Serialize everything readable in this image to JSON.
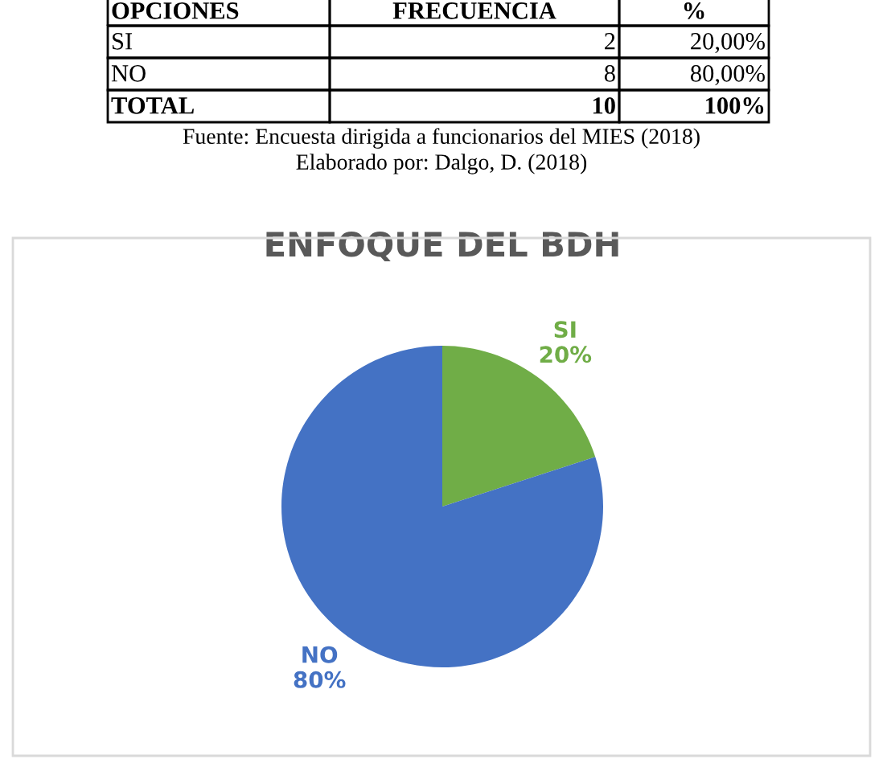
{
  "chart_data": {
    "type": "pie",
    "title": "ENFOQUE DEL BDH",
    "categories": [
      "SI",
      "NO"
    ],
    "values": [
      20,
      80
    ],
    "colors": [
      "#70ad47",
      "#4472c4"
    ],
    "value_labels": [
      "20%",
      "80%"
    ],
    "annotations": [
      "OPCIONES",
      "FRECUENCIA",
      "%",
      "SI",
      "2",
      "20,00%",
      "NO",
      "8",
      "80,00%",
      "TOTAL",
      "10",
      "100%",
      "Fuente: Encuesta dirigida a funcionarios del MIES (2018)",
      "Elaborado por: Dalgo, D. (2018)"
    ]
  }
}
